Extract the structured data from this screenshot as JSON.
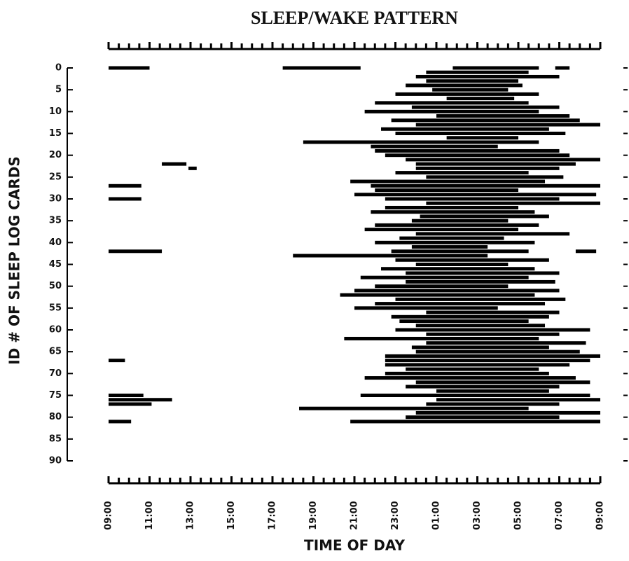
{
  "chart_data": {
    "type": "interval",
    "title": "SLEEP/WAKE PATTERN",
    "x_label": "TIME OF DAY",
    "y_label": "ID # OF SLEEP LOG CARDS",
    "xlim": [
      0,
      24
    ],
    "xticks": [
      {
        "value": 0,
        "label": "09:00"
      },
      {
        "value": 2,
        "label": "11:00"
      },
      {
        "value": 4,
        "label": "13:00"
      },
      {
        "value": 6,
        "label": "15:00"
      },
      {
        "value": 8,
        "label": "17:00"
      },
      {
        "value": 10,
        "label": "19:00"
      },
      {
        "value": 12,
        "label": "21:00"
      },
      {
        "value": 14,
        "label": "23:00"
      },
      {
        "value": 16,
        "label": "01:00"
      },
      {
        "value": 18,
        "label": "03:00"
      },
      {
        "value": 20,
        "label": "05:00"
      },
      {
        "value": 22,
        "label": "07:00"
      },
      {
        "value": 24,
        "label": "09:00"
      }
    ],
    "ylim": [
      0,
      90
    ],
    "yticks": [
      0,
      5,
      10,
      15,
      20,
      25,
      30,
      35,
      40,
      45,
      50,
      55,
      60,
      65,
      70,
      75,
      80,
      85,
      90
    ],
    "y_inverted": true,
    "color": "#000000",
    "intervals": [
      {
        "id": 0,
        "start": 0,
        "end": 2
      },
      {
        "id": 0,
        "start": 8.5,
        "end": 12.3
      },
      {
        "id": 0,
        "start": 16.8,
        "end": 21
      },
      {
        "id": 0,
        "start": 21.8,
        "end": 22.5
      },
      {
        "id": 1,
        "start": 15.5,
        "end": 20.5
      },
      {
        "id": 2,
        "start": 15,
        "end": 22
      },
      {
        "id": 3,
        "start": 15.5,
        "end": 20
      },
      {
        "id": 4,
        "start": 14.5,
        "end": 20.2
      },
      {
        "id": 5,
        "start": 15.8,
        "end": 19.5
      },
      {
        "id": 6,
        "start": 14,
        "end": 21
      },
      {
        "id": 7,
        "start": 16.5,
        "end": 19.8
      },
      {
        "id": 8,
        "start": 13,
        "end": 20.5
      },
      {
        "id": 9,
        "start": 14.8,
        "end": 22
      },
      {
        "id": 10,
        "start": 12.5,
        "end": 21
      },
      {
        "id": 11,
        "start": 16,
        "end": 22.5
      },
      {
        "id": 12,
        "start": 13.8,
        "end": 23
      },
      {
        "id": 13,
        "start": 15,
        "end": 24
      },
      {
        "id": 14,
        "start": 13.3,
        "end": 21.5
      },
      {
        "id": 15,
        "start": 14,
        "end": 22.3
      },
      {
        "id": 16,
        "start": 16.5,
        "end": 20
      },
      {
        "id": 17,
        "start": 9.5,
        "end": 21
      },
      {
        "id": 18,
        "start": 12.8,
        "end": 19
      },
      {
        "id": 19,
        "start": 13,
        "end": 22
      },
      {
        "id": 20,
        "start": 13.5,
        "end": 22.5
      },
      {
        "id": 21,
        "start": 14.5,
        "end": 24
      },
      {
        "id": 22,
        "start": 2.6,
        "end": 3.8
      },
      {
        "id": 22,
        "start": 15,
        "end": 22.8
      },
      {
        "id": 23,
        "start": 3.9,
        "end": 4.3
      },
      {
        "id": 23,
        "start": 15,
        "end": 22
      },
      {
        "id": 24,
        "start": 14,
        "end": 20.5
      },
      {
        "id": 25,
        "start": 15.5,
        "end": 22.2
      },
      {
        "id": 26,
        "start": 11.8,
        "end": 21.3
      },
      {
        "id": 27,
        "start": 0,
        "end": 1.6
      },
      {
        "id": 27,
        "start": 12.8,
        "end": 24
      },
      {
        "id": 28,
        "start": 13,
        "end": 20
      },
      {
        "id": 29,
        "start": 12,
        "end": 23.8
      },
      {
        "id": 30,
        "start": 0,
        "end": 1.6
      },
      {
        "id": 30,
        "start": 13.5,
        "end": 22
      },
      {
        "id": 31,
        "start": 15.5,
        "end": 24
      },
      {
        "id": 32,
        "start": 13.5,
        "end": 20
      },
      {
        "id": 33,
        "start": 12.8,
        "end": 20.8
      },
      {
        "id": 34,
        "start": 15.2,
        "end": 21.5
      },
      {
        "id": 35,
        "start": 14.8,
        "end": 19.5
      },
      {
        "id": 36,
        "start": 13,
        "end": 21
      },
      {
        "id": 37,
        "start": 12.5,
        "end": 20
      },
      {
        "id": 38,
        "start": 15,
        "end": 22.5
      },
      {
        "id": 39,
        "start": 14.2,
        "end": 19.3
      },
      {
        "id": 40,
        "start": 13,
        "end": 20.8
      },
      {
        "id": 41,
        "start": 14.8,
        "end": 18.5
      },
      {
        "id": 42,
        "start": 0,
        "end": 2.6
      },
      {
        "id": 42,
        "start": 13.8,
        "end": 20.5
      },
      {
        "id": 42,
        "start": 22.8,
        "end": 23.8
      },
      {
        "id": 43,
        "start": 9,
        "end": 18.5
      },
      {
        "id": 44,
        "start": 14,
        "end": 21.5
      },
      {
        "id": 45,
        "start": 15,
        "end": 19.5
      },
      {
        "id": 46,
        "start": 13.3,
        "end": 20.8
      },
      {
        "id": 47,
        "start": 14.5,
        "end": 22
      },
      {
        "id": 48,
        "start": 12.3,
        "end": 20.5
      },
      {
        "id": 49,
        "start": 14.5,
        "end": 21.8
      },
      {
        "id": 50,
        "start": 13,
        "end": 19.5
      },
      {
        "id": 51,
        "start": 12,
        "end": 22
      },
      {
        "id": 52,
        "start": 11.3,
        "end": 20.8
      },
      {
        "id": 53,
        "start": 14,
        "end": 22.3
      },
      {
        "id": 54,
        "start": 13,
        "end": 21.3
      },
      {
        "id": 55,
        "start": 12,
        "end": 19
      },
      {
        "id": 56,
        "start": 15.5,
        "end": 22
      },
      {
        "id": 57,
        "start": 13.8,
        "end": 21.5
      },
      {
        "id": 58,
        "start": 14.2,
        "end": 20.5
      },
      {
        "id": 59,
        "start": 15,
        "end": 21.3
      },
      {
        "id": 60,
        "start": 14,
        "end": 23.5
      },
      {
        "id": 61,
        "start": 15.5,
        "end": 22
      },
      {
        "id": 62,
        "start": 11.5,
        "end": 21
      },
      {
        "id": 63,
        "start": 15.5,
        "end": 23.3
      },
      {
        "id": 64,
        "start": 14.8,
        "end": 21.5
      },
      {
        "id": 65,
        "start": 15,
        "end": 23
      },
      {
        "id": 66,
        "start": 13.5,
        "end": 24
      },
      {
        "id": 67,
        "start": 0,
        "end": 0.8
      },
      {
        "id": 67,
        "start": 13.5,
        "end": 23.5
      },
      {
        "id": 68,
        "start": 13.5,
        "end": 22.5
      },
      {
        "id": 69,
        "start": 14.5,
        "end": 21
      },
      {
        "id": 70,
        "start": 13.5,
        "end": 21.5
      },
      {
        "id": 71,
        "start": 12.5,
        "end": 22.8
      },
      {
        "id": 72,
        "start": 15,
        "end": 23.5
      },
      {
        "id": 73,
        "start": 14.5,
        "end": 22
      },
      {
        "id": 74,
        "start": 16,
        "end": 21.5
      },
      {
        "id": 75,
        "start": 0,
        "end": 1.7
      },
      {
        "id": 75,
        "start": 12.3,
        "end": 23.5
      },
      {
        "id": 76,
        "start": 0,
        "end": 3.1
      },
      {
        "id": 76,
        "start": 16,
        "end": 24
      },
      {
        "id": 77,
        "start": 0,
        "end": 2.1
      },
      {
        "id": 77,
        "start": 15.5,
        "end": 22
      },
      {
        "id": 78,
        "start": 9.3,
        "end": 20.5
      },
      {
        "id": 79,
        "start": 15,
        "end": 24
      },
      {
        "id": 80,
        "start": 14.5,
        "end": 22
      },
      {
        "id": 81,
        "start": 0,
        "end": 1.1
      },
      {
        "id": 81,
        "start": 11.8,
        "end": 24
      }
    ]
  }
}
